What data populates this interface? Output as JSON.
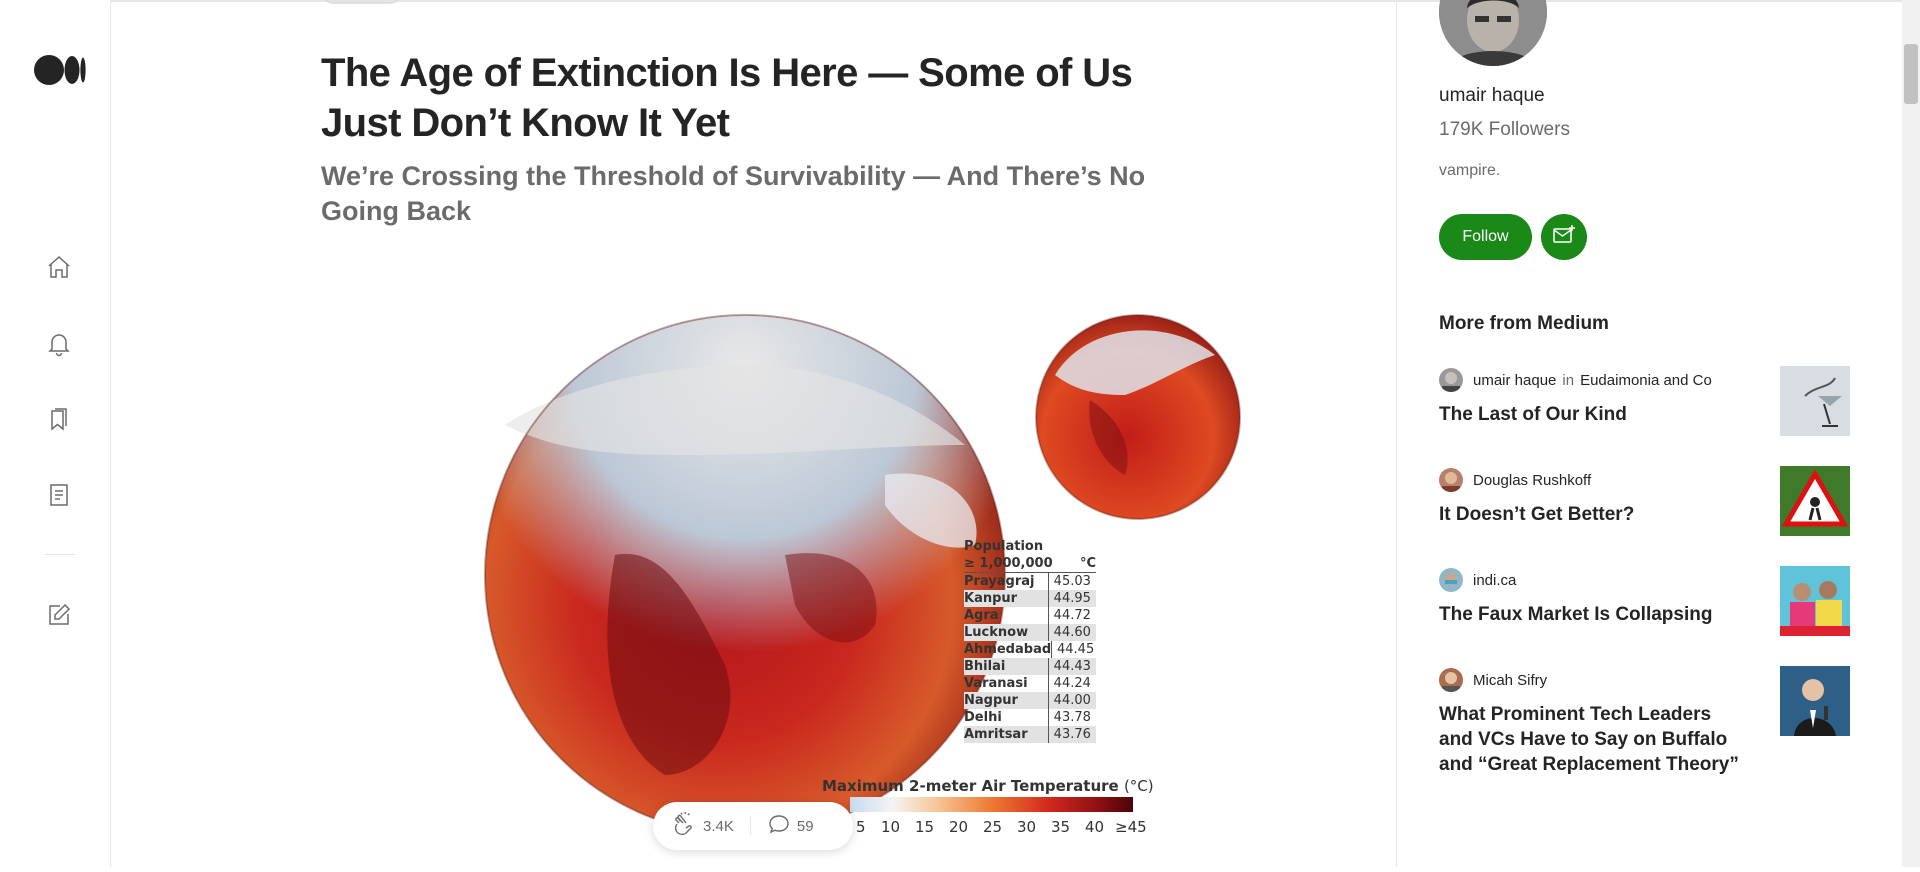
{
  "article": {
    "title": "The Age of Extinction Is Here — Some of Us Just Don’t Know It Yet",
    "subtitle": "We’re Crossing the Threshold of Survivability — And There’s No Going Back"
  },
  "figure": {
    "table_header_line1": "Population",
    "table_header_line2": "≥ 1,000,000",
    "table_header_unit": "°C",
    "rows": [
      {
        "city": "Prayagraj",
        "value": "45.03"
      },
      {
        "city": "Kanpur",
        "value": "44.95"
      },
      {
        "city": "Agra",
        "value": "44.72"
      },
      {
        "city": "Lucknow",
        "value": "44.60"
      },
      {
        "city": "Ahmedabad",
        "value": "44.45"
      },
      {
        "city": "Bhilai",
        "value": "44.43"
      },
      {
        "city": "Varanasi",
        "value": "44.24"
      },
      {
        "city": "Nagpur",
        "value": "44.00"
      },
      {
        "city": "Delhi",
        "value": "43.78"
      },
      {
        "city": "Amritsar",
        "value": "43.76"
      }
    ],
    "legend_title": "Maximum 2-meter Air Temperature",
    "legend_unit": "(°C)",
    "legend_ticks": [
      "5",
      "10",
      "15",
      "20",
      "25",
      "30",
      "35",
      "40",
      "≥45"
    ]
  },
  "actions": {
    "claps": "3.4K",
    "responses": "59"
  },
  "rail": {
    "icons": [
      "medium-logo",
      "home-icon",
      "bell-icon",
      "bookmarks-icon",
      "stories-icon",
      "write-icon"
    ]
  },
  "sidebar": {
    "author_name": "umair haque",
    "followers": "179K Followers",
    "bio": "vampire.",
    "follow_label": "Follow",
    "more_title": "More from Medium",
    "recs": [
      {
        "author": "umair haque",
        "in": "in",
        "publication": "Eudaimonia and Co",
        "title": "The Last of Our Kind"
      },
      {
        "author": "Douglas Rushkoff",
        "in": "",
        "publication": "",
        "title": "It Doesn’t Get Better?"
      },
      {
        "author": "indi.ca",
        "in": "",
        "publication": "",
        "title": "The Faux Market Is Collapsing"
      },
      {
        "author": "Micah Sifry",
        "in": "",
        "publication": "",
        "title": "What Prominent Tech Leaders and VCs Have to Say on Buffalo and “Great Replacement Theory”"
      }
    ]
  },
  "colors": {
    "accent_green": "#1a8917",
    "text_primary": "#242424",
    "text_secondary": "#6b6b6b"
  }
}
